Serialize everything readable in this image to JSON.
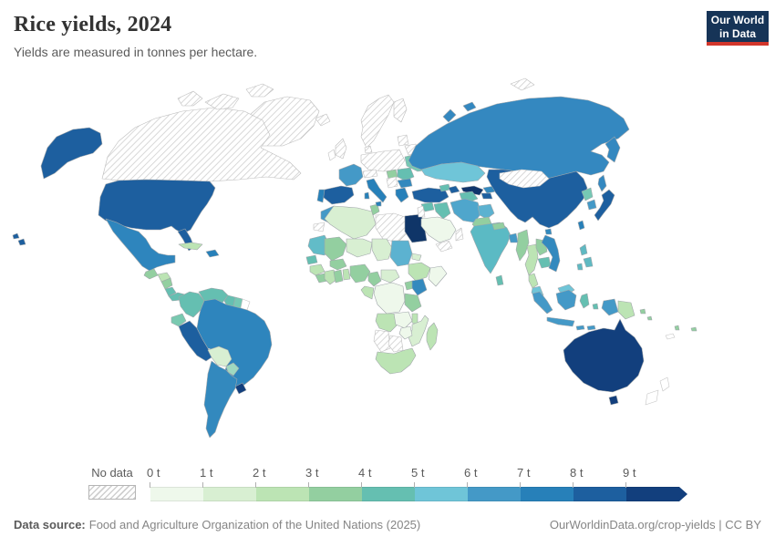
{
  "header": {
    "title": "Rice yields, 2024",
    "subtitle": "Yields are measured in tonnes per hectare."
  },
  "logo": {
    "line1": "Our World",
    "line2": "in Data",
    "bg": "#163457",
    "accent": "#d2362b"
  },
  "legend": {
    "no_data_label": "No data",
    "ticks": [
      "0 t",
      "1 t",
      "2 t",
      "3 t",
      "4 t",
      "5 t",
      "6 t",
      "7 t",
      "8 t",
      "9 t"
    ],
    "bins": [
      "#eef8eb",
      "#d8efd2",
      "#bce4b4",
      "#93cfa0",
      "#65bfb1",
      "#6fc5d8",
      "#4499c7",
      "#2780b9",
      "#1d5f9f",
      "#123f7d"
    ]
  },
  "footer": {
    "source_label": "Data source:",
    "source_text": "Food and Agriculture Organization of the United Nations (2025)",
    "right_text": "OurWorldinData.org/crop-yields | CC BY"
  },
  "map": {
    "border_color": "#a0a6aa",
    "no_data_border": "#bdbdbd",
    "outline_border": "#c4c4c4",
    "fills": {
      "greenland": "no-data",
      "canada": "no-data",
      "canada-arctic-1": "no-data",
      "canada-arctic-2": "no-data",
      "canada-arctic-3": "no-data",
      "svalbard": "no-data",
      "iceland": "no-data",
      "alaska": "#1d5f9f",
      "usa": "#1d5f9f",
      "florida": "#1d5f9f",
      "hawaii-1": "#1d5f9f",
      "hawaii-2": "#1d5f9f",
      "mexico": "#2e85bd",
      "guatemala": "#93cfa0",
      "honduras": "#bce4b4",
      "nicaragua": "#93cfa0",
      "costa-rica": "#65bfb1",
      "panama": "#65bfb1",
      "cuba": "#bce4b4",
      "hispaniola": "#2780b9",
      "colombia": "#65bfb1",
      "venezuela": "#65bfb1",
      "guyana": "#65bfb1",
      "suriname": "#76c8b4",
      "french-guiana": "outline",
      "ecuador": "#79c9b0",
      "peru": "#1d5f9f",
      "brazil": "#2e85bd",
      "bolivia": "#d8efd2",
      "paraguay": "#9fd8c0",
      "uruguay": "#123f7d",
      "argentina": "#3389be",
      "morocco": "#4499c7",
      "western-sahara": "no-data",
      "algeria": "#d8efd2",
      "tunisia": "#93cfa0",
      "libya": "no-data",
      "egypt": "#0f3568",
      "mauritania": "#62bcc8",
      "mali": "#93cfa0",
      "niger": "#d8efd2",
      "chad": "#d8efd2",
      "sudan": "#5cb2d0",
      "eritrea": "#d8efd2",
      "ethiopia": "#bce4b4",
      "somalia": "#eef8eb",
      "senegal": "#65bfb1",
      "guinea": "#bce4b4",
      "sierra-leone": "#93cfa0",
      "ivory-coast": "#bce4b4",
      "ghana": "#93cfa0",
      "togo-benin": "#bce4b4",
      "burkina-faso": "#93cfa0",
      "nigeria": "#93cfa0",
      "cameroon": "#93cfa0",
      "central-african-republic": "#d8efd2",
      "drc": "#eef8eb",
      "congo-gabon": "#bce4b4",
      "uganda": "#93cfa0",
      "kenya": "#3389be",
      "tanzania": "#93cfa0",
      "angola": "#bce4b4",
      "zambia": "#eef8eb",
      "malawi": "#bce4b4",
      "mozambique": "#d8efd2",
      "zimbabwe": "#eef8eb",
      "namibia": "no-data",
      "botswana": "no-data",
      "south-africa": "#bce4b4",
      "madagascar": "#bce4b4",
      "uk": "no-data",
      "ireland": "outline",
      "norway-sweden": "no-data",
      "finland": "no-data",
      "baltics": "no-data",
      "denmark": "no-data",
      "central-europe": "no-data",
      "belarus": "no-data",
      "france": "#4499c7",
      "spain": "#1d5f9f",
      "portugal": "#2780b9",
      "italy": "#2780b9",
      "sicily": "#2780b9",
      "sardinia": "#2780b9",
      "alps": "no-data",
      "hungary": "#93cfa0",
      "ukraine": "#76c8b4",
      "romania": "#65bfb1",
      "balkans": "no-data",
      "bulgaria": "#3389be",
      "greece": "#2780b9",
      "russia": "#3488c0",
      "kamchatka": "#3488c0",
      "sakhalin": "#3488c0",
      "novaya-zemlya": "#3488c0",
      "severnaya": "#3488c0",
      "kazakhstan": "#6fc5d8",
      "uzbekistan": "#10356b",
      "turkmenistan": "#65bfb1",
      "kyrgyzstan": "#3389be",
      "tajikistan": "#1d5f9f",
      "turkey": "#1d5f9f",
      "georgia": "#65bfb1",
      "azerbaijan": "#1d5f9f",
      "syria": "#65bfb1",
      "israel-jordan": "no-data",
      "iraq": "#65bfb1",
      "saudi-arabia": "#eef8eb",
      "yemen": "no-data",
      "oman": "no-data",
      "iran": "#4fa6cc",
      "afghanistan": "#5cb2d0",
      "pakistan": "#93cfa0",
      "india": "#5bbac4",
      "nepal": "#93cfa0",
      "bangladesh": "#4499c7",
      "sri-lanka": "#65bfb1",
      "myanmar": "#93cfa0",
      "thailand": "#bce4b4",
      "thai-peninsula": "#bce4b4",
      "laos": "#93cfa0",
      "cambodia": "#65bfb1",
      "vietnam": "#3389be",
      "malaysia": "#6fc5d8",
      "china": "#1d5f9f",
      "mongolia": "no-data",
      "hainan": "#3389be",
      "taiwan": "#2780b9",
      "north-korea": "#76c8b4",
      "south-korea": "#4499c7",
      "japan": "#1d5f9f",
      "philippines-1": "#5fb9c2",
      "philippines-2": "#5fb9c2",
      "philippines-3": "#5fb9c2",
      "sumatra": "#4499c7",
      "java": "#4499c7",
      "borneo-malaysia": "#6fc5d8",
      "kalimantan": "#4499c7",
      "sulawesi": "#65bfb1",
      "maluku": "#65bfb1",
      "lesser-sunda-1": "#4499c7",
      "lesser-sunda-2": "#4499c7",
      "papua-indonesia": "#4499c7",
      "papua-new-guinea": "#bce4b4",
      "solomon-1": "#93cfa0",
      "solomon-2": "#93cfa0",
      "vanuatu": "#93cfa0",
      "fiji": "#93cfa0",
      "new-caledonia": "outline",
      "australia": "#123f7d",
      "tasmania": "#123f7d",
      "nz-north": "outline",
      "nz-south": "outline"
    }
  }
}
